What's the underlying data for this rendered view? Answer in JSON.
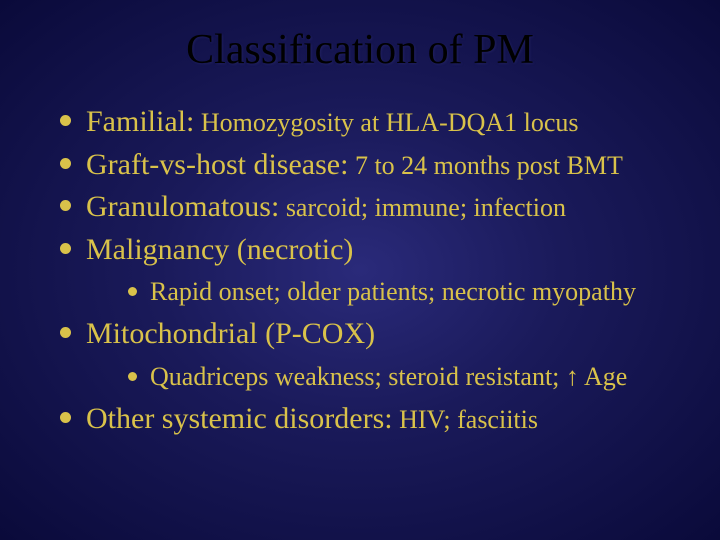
{
  "colors": {
    "background_center": "#2a2a7a",
    "background_mid": "#1a1a5a",
    "background_edge": "#0a0a3a",
    "title_text": "#000000",
    "body_text": "#d9c24a",
    "bullet": "#d9c24a"
  },
  "typography": {
    "family": "Times New Roman",
    "title_size_pt": 42,
    "level1_lead_size_pt": 30,
    "level1_detail_size_pt": 26,
    "level2_size_pt": 26
  },
  "slide": {
    "title": "Classification of PM",
    "items": [
      {
        "lead": "Familial:",
        "detail": " Homozygosity at HLA-DQA1 locus"
      },
      {
        "lead": "Graft-vs-host disease:",
        "detail": " 7 to 24 months post BMT"
      },
      {
        "lead": "Granulomatous:",
        "detail": " sarcoid; immune; infection"
      },
      {
        "lead": "Malignancy (necrotic)",
        "detail": "",
        "sub": [
          "Rapid onset; older patients; necrotic myopathy"
        ]
      },
      {
        "lead": "Mitochondrial (P-COX)",
        "detail": "",
        "sub": [
          "Quadriceps weakness; steroid resistant; ↑ Age"
        ]
      },
      {
        "lead": "Other systemic disorders:",
        "detail": " HIV; fasciitis"
      }
    ]
  }
}
